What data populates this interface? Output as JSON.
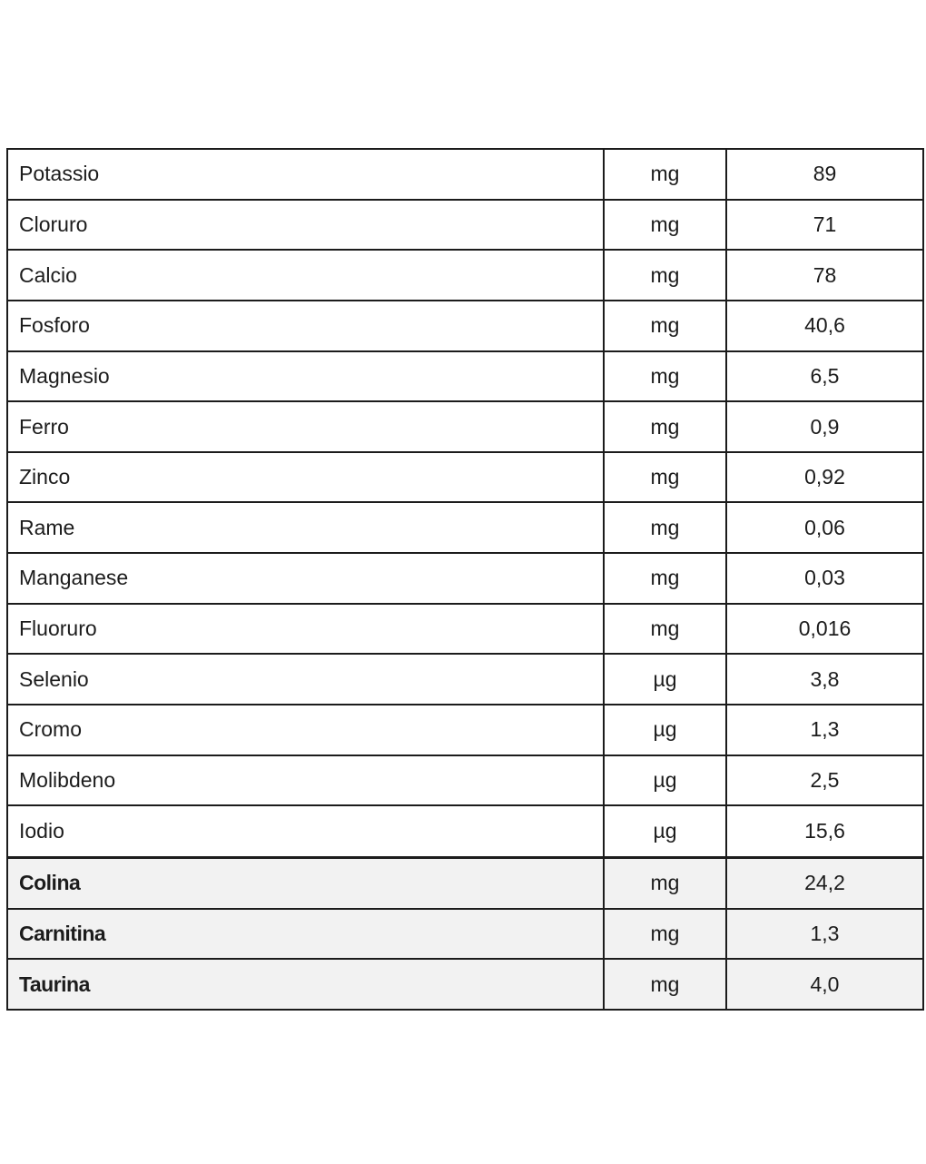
{
  "page": {
    "background": "#ffffff"
  },
  "table": {
    "border_color": "#1c1c1c",
    "highlight_bg": "#f2f2f2",
    "columns": [
      {
        "id": "nutrient"
      },
      {
        "id": "unit"
      },
      {
        "id": "value"
      }
    ],
    "rows": [
      {
        "name": "Potassio",
        "unit": "mg",
        "value": "89",
        "highlight": false
      },
      {
        "name": "Cloruro",
        "unit": "mg",
        "value": "71",
        "highlight": false
      },
      {
        "name": "Calcio",
        "unit": "mg",
        "value": "78",
        "highlight": false
      },
      {
        "name": "Fosforo",
        "unit": "mg",
        "value": "40,6",
        "highlight": false
      },
      {
        "name": "Magnesio",
        "unit": "mg",
        "value": "6,5",
        "highlight": false
      },
      {
        "name": "Ferro",
        "unit": "mg",
        "value": "0,9",
        "highlight": false
      },
      {
        "name": "Zinco",
        "unit": "mg",
        "value": "0,92",
        "highlight": false
      },
      {
        "name": "Rame",
        "unit": "mg",
        "value": "0,06",
        "highlight": false
      },
      {
        "name": "Manganese",
        "unit": "mg",
        "value": "0,03",
        "highlight": false
      },
      {
        "name": "Fluoruro",
        "unit": "mg",
        "value": "0,016",
        "highlight": false
      },
      {
        "name": "Selenio",
        "unit": "µg",
        "value": "3,8",
        "highlight": false
      },
      {
        "name": "Cromo",
        "unit": "µg",
        "value": "1,3",
        "highlight": false
      },
      {
        "name": "Molibdeno",
        "unit": "µg",
        "value": "2,5",
        "highlight": false
      },
      {
        "name": "Iodio",
        "unit": "µg",
        "value": "15,6",
        "highlight": false
      },
      {
        "name": "Colina",
        "unit": "mg",
        "value": "24,2",
        "highlight": true
      },
      {
        "name": "Carnitina",
        "unit": "mg",
        "value": "1,3",
        "highlight": true
      },
      {
        "name": "Taurina",
        "unit": "mg",
        "value": "4,0",
        "highlight": true
      }
    ]
  }
}
